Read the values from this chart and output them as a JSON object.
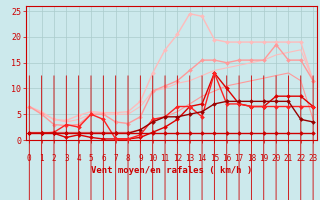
{
  "xlabel": "Vent moyen/en rafales ( km/h )",
  "bg_color": "#cce9ec",
  "grid_color": "#aacccc",
  "x": [
    0,
    1,
    2,
    3,
    4,
    5,
    6,
    7,
    8,
    9,
    10,
    11,
    12,
    13,
    14,
    15,
    16,
    17,
    18,
    19,
    20,
    21,
    22,
    23
  ],
  "ylim": [
    0,
    26
  ],
  "xlim": [
    -0.3,
    23.3
  ],
  "yticks": [
    0,
    5,
    10,
    15,
    20,
    25
  ],
  "lines": [
    {
      "y": [
        6.5,
        5.2,
        4.0,
        3.8,
        4.8,
        5.5,
        5.3,
        5.3,
        5.5,
        7.5,
        13.0,
        17.5,
        20.5,
        24.5,
        24.0,
        19.5,
        19.0,
        19.0,
        19.0,
        19.0,
        19.0,
        19.0,
        19.0,
        11.5
      ],
      "color": "#ffbbbb",
      "lw": 1.0,
      "marker": "D",
      "ms": 2.0,
      "zorder": 2
    },
    {
      "y": [
        6.5,
        5.0,
        3.0,
        2.8,
        3.0,
        5.0,
        5.0,
        3.5,
        3.2,
        4.5,
        9.5,
        10.5,
        11.5,
        13.5,
        15.5,
        15.5,
        15.0,
        15.5,
        15.5,
        15.5,
        18.5,
        15.5,
        15.5,
        11.5
      ],
      "color": "#ff9999",
      "lw": 1.0,
      "marker": "D",
      "ms": 2.0,
      "zorder": 3
    },
    {
      "y": [
        6.5,
        5.5,
        4.0,
        3.5,
        4.0,
        5.0,
        5.0,
        5.0,
        5.0,
        6.5,
        9.5,
        10.0,
        11.0,
        11.5,
        12.5,
        13.5,
        14.0,
        14.5,
        15.0,
        15.5,
        16.5,
        17.0,
        17.5,
        11.5
      ],
      "color": "#ffbbbb",
      "lw": 0.8,
      "marker": null,
      "ms": 0,
      "zorder": 2
    },
    {
      "y": [
        1.5,
        1.5,
        1.5,
        1.5,
        1.5,
        1.5,
        1.5,
        1.5,
        1.5,
        2.0,
        3.5,
        4.5,
        5.5,
        7.0,
        8.5,
        9.5,
        10.5,
        11.0,
        11.5,
        12.0,
        12.5,
        13.0,
        11.5,
        4.0
      ],
      "color": "#ff9999",
      "lw": 0.8,
      "marker": null,
      "ms": 0,
      "zorder": 3
    },
    {
      "y": [
        1.3,
        1.3,
        1.3,
        0.5,
        1.0,
        0.5,
        0.2,
        0.2,
        0.2,
        0.5,
        1.5,
        2.5,
        4.0,
        6.5,
        7.0,
        13.0,
        10.0,
        7.0,
        6.5,
        6.5,
        8.5,
        8.5,
        8.5,
        6.5
      ],
      "color": "#dd0000",
      "lw": 1.0,
      "marker": "D",
      "ms": 2.0,
      "zorder": 5
    },
    {
      "y": [
        1.3,
        1.3,
        1.5,
        3.0,
        2.5,
        5.0,
        4.0,
        0.2,
        0.2,
        1.0,
        4.0,
        4.5,
        6.5,
        6.5,
        4.5,
        13.0,
        7.0,
        7.0,
        6.5,
        6.5,
        6.5,
        6.5,
        6.5,
        6.5
      ],
      "color": "#ff2222",
      "lw": 1.0,
      "marker": "D",
      "ms": 2.0,
      "zorder": 5
    },
    {
      "y": [
        1.3,
        1.3,
        1.3,
        1.3,
        1.3,
        1.3,
        1.3,
        1.3,
        1.3,
        1.3,
        1.3,
        1.3,
        1.3,
        1.3,
        1.3,
        1.3,
        1.3,
        1.3,
        1.3,
        1.3,
        1.3,
        1.3,
        1.3,
        1.3
      ],
      "color": "#cc0000",
      "lw": 1.0,
      "marker": "D",
      "ms": 2.0,
      "zorder": 6
    },
    {
      "y": [
        1.3,
        1.3,
        1.3,
        1.3,
        1.3,
        1.3,
        1.3,
        1.3,
        1.3,
        2.0,
        3.5,
        4.5,
        4.5,
        5.0,
        5.5,
        7.0,
        7.5,
        7.5,
        7.5,
        7.5,
        7.5,
        7.5,
        4.0,
        3.5
      ],
      "color": "#990000",
      "lw": 1.0,
      "marker": "D",
      "ms": 2.0,
      "zorder": 5
    }
  ],
  "arrow_color": "#cc0000",
  "xlabel_color": "#cc0000",
  "xlabel_fontsize": 6.5,
  "tick_color": "#cc0000",
  "tick_fontsize": 5.5
}
